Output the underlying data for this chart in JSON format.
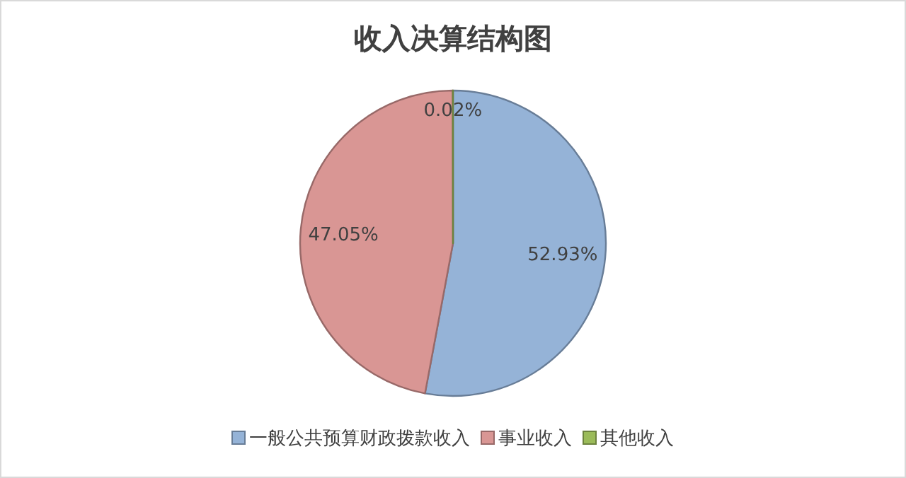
{
  "chart_data": {
    "type": "pie",
    "title": "收入决算结构图",
    "categories": [
      "一般公共预算财政拨款收入",
      "事业收入",
      "其他收入"
    ],
    "values": [
      52.93,
      47.05,
      0.02
    ],
    "colors": [
      "#95b3d7",
      "#d99694",
      "#9bbb59"
    ],
    "value_labels": [
      "52.93%",
      "47.05%",
      "0.02%"
    ],
    "legend": "bottom"
  }
}
